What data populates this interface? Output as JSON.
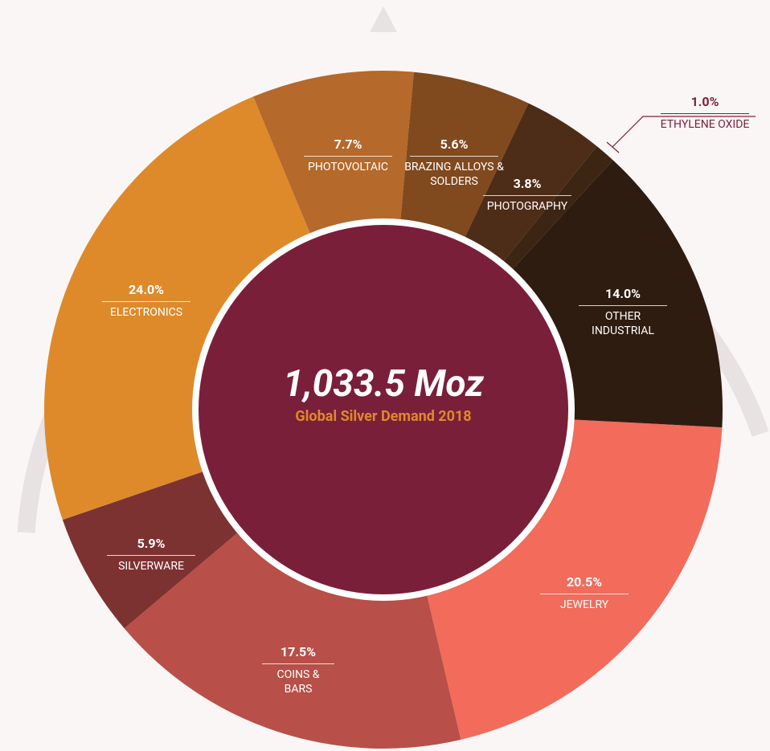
{
  "chart_data": {
    "type": "pie",
    "center_title": "1,033.5 Moz",
    "center_subtitle": "Global Silver Demand 2018",
    "categories": [
      "JEWELRY",
      "COINS & BARS",
      "SILVERWARE",
      "ELECTRONICS",
      "PHOTOVOLTAIC",
      "BRAZING ALLOYS & SOLDERS",
      "PHOTOGRAPHY",
      "ETHYLENE OXIDE",
      "OTHER INDUSTRIAL"
    ],
    "values": [
      20.5,
      17.5,
      5.9,
      24.0,
      7.7,
      5.6,
      3.8,
      1.0,
      14.0
    ],
    "value_labels": [
      "20.5%",
      "17.5%",
      "5.9%",
      "24.0%",
      "7.7%",
      "5.6%",
      "3.8%",
      "1.0%",
      "14.0%"
    ],
    "colors": [
      "#f26b5b",
      "#b84f48",
      "#7d3232",
      "#de8a2a",
      "#b5692a",
      "#80491e",
      "#4e2d18",
      "#3d2514",
      "#2e1c10"
    ]
  }
}
